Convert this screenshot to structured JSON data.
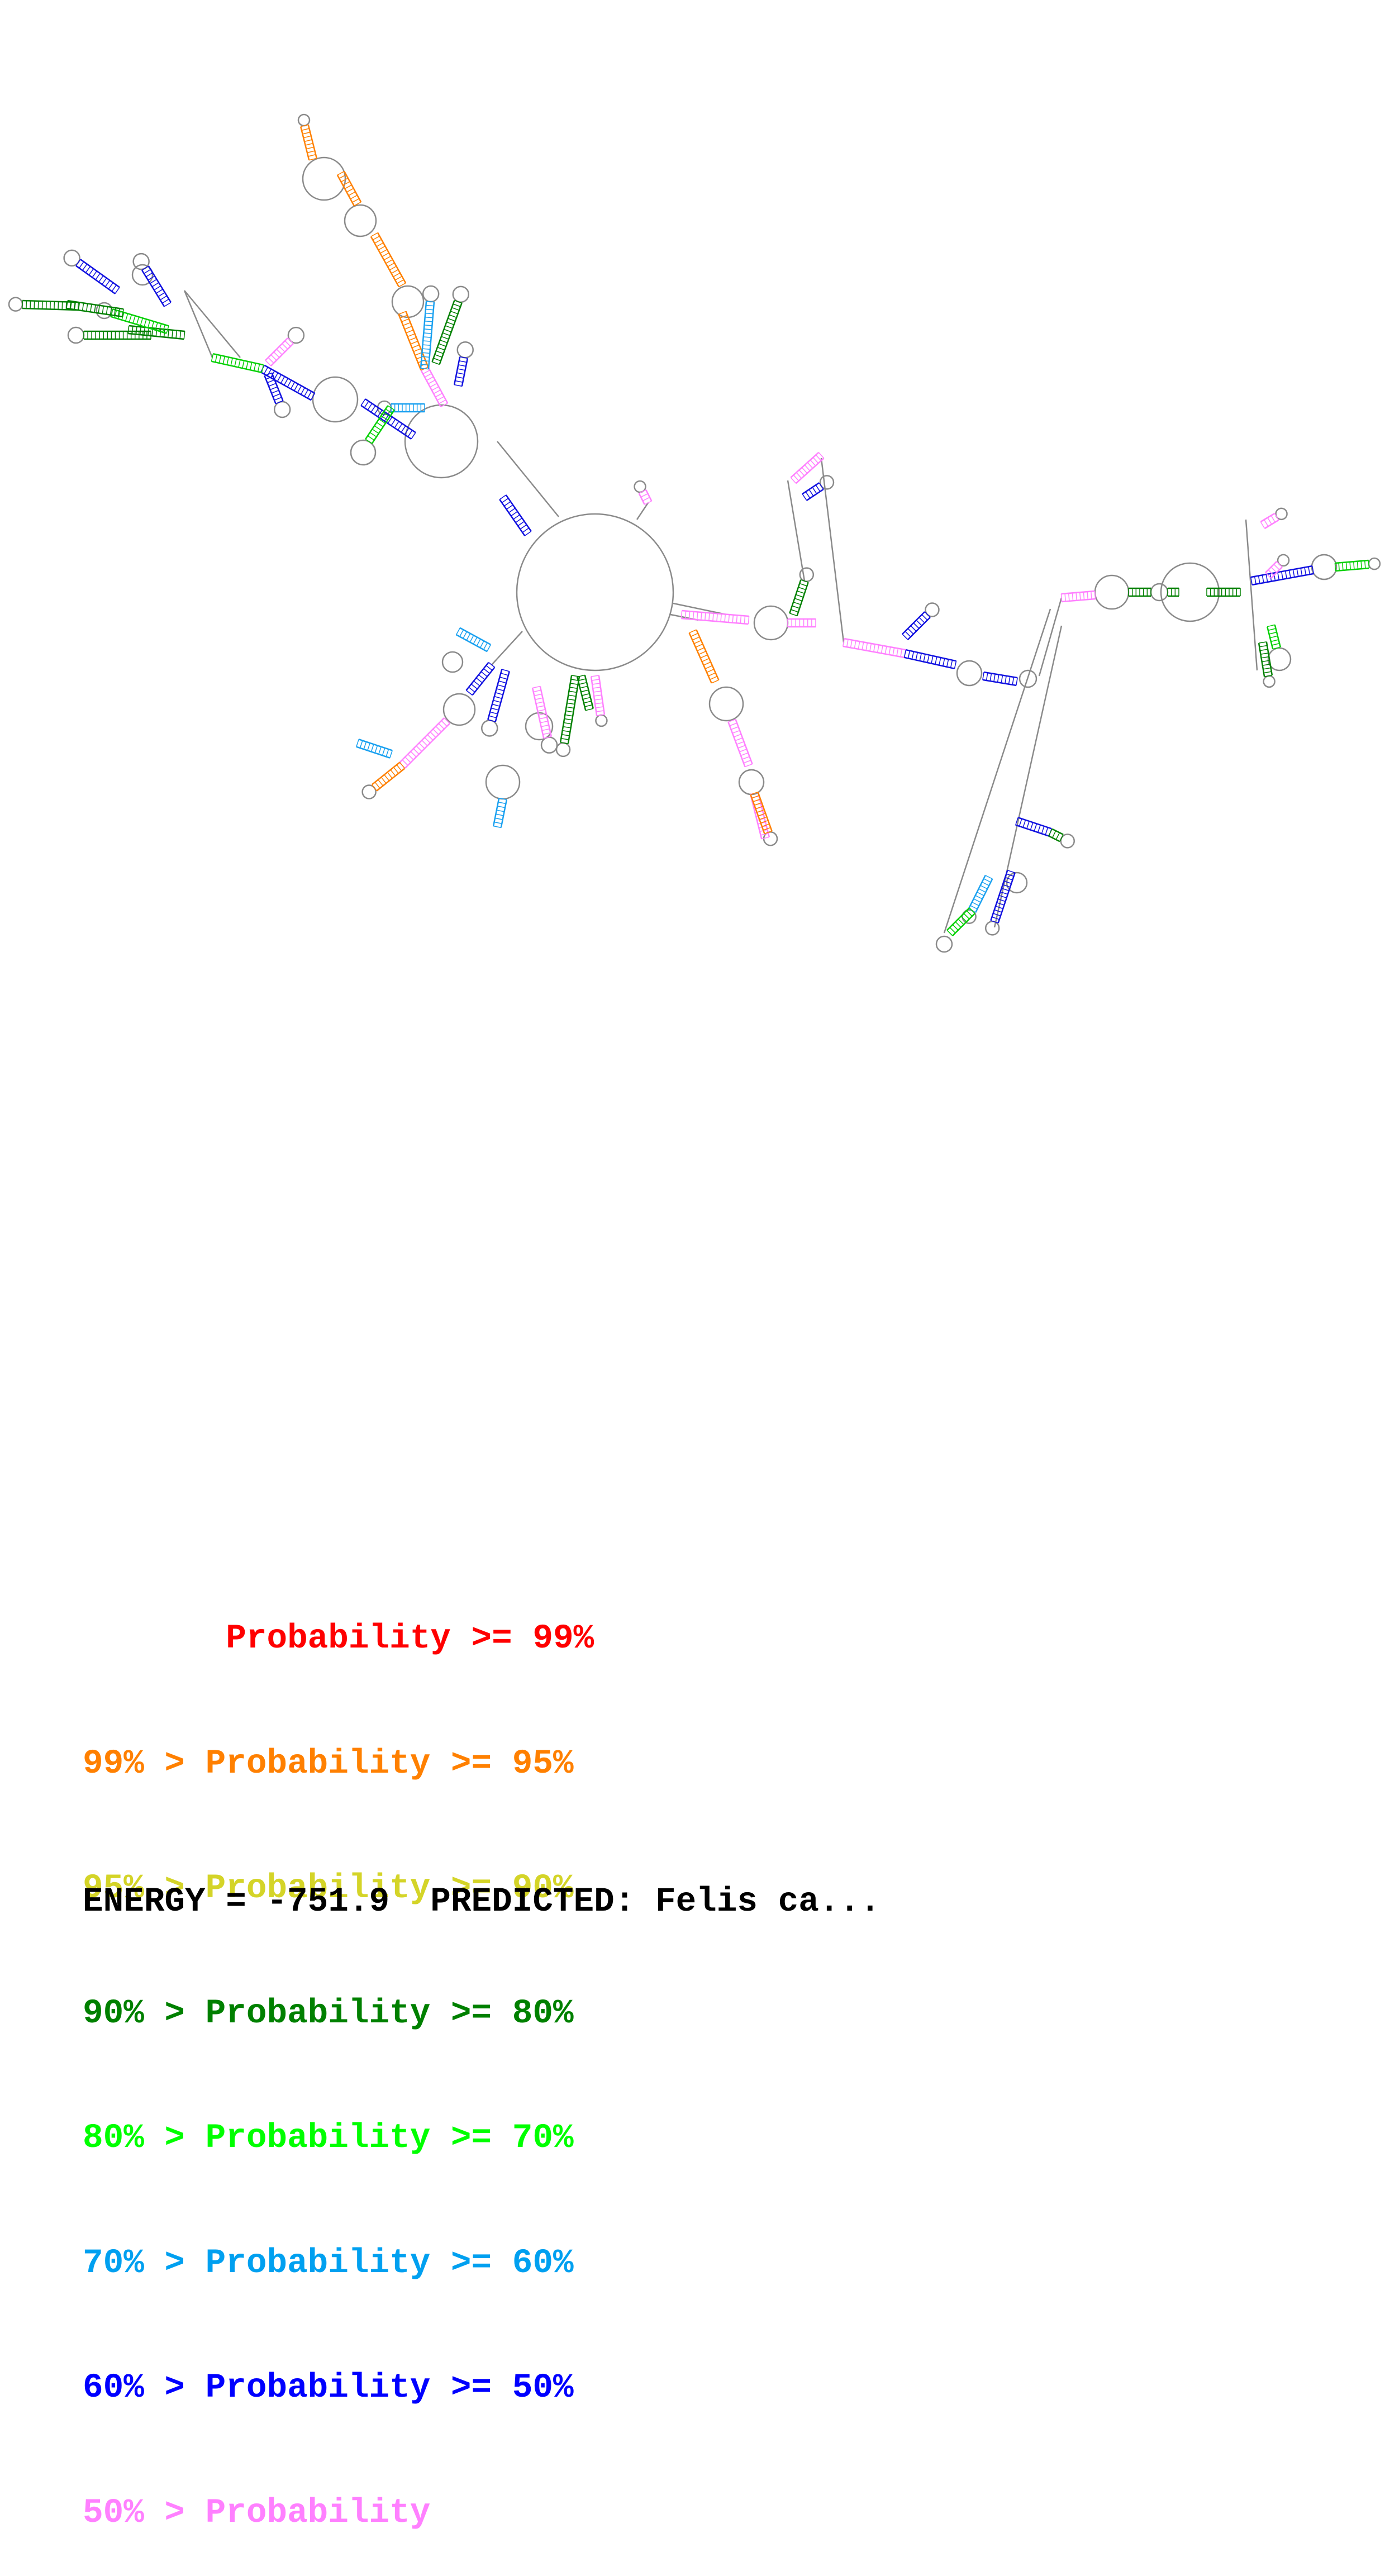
{
  "diagram": {
    "type": "rna-secondary-structure",
    "line_color": "#8a8a8a",
    "helix_colors": [
      "#e02020",
      "#ff8000",
      "#c8c83c",
      "#008000",
      "#00d000",
      "#18a0f0",
      "#1010e0",
      "#ff80ff",
      "#a0a0a0"
    ]
  },
  "legend": [
    {
      "prefix": "       ",
      "label": "Probability >= 99%",
      "color": "#ff0000"
    },
    {
      "prefix": "99% > ",
      "label": "Probability >= 95%",
      "color": "#ff8000"
    },
    {
      "prefix": "95% > ",
      "label": "Probability >= 90%",
      "color": "#d4d428"
    },
    {
      "prefix": "90% > ",
      "label": "Probability >= 80%",
      "color": "#008000"
    },
    {
      "prefix": "80% > ",
      "label": "Probability >= 70%",
      "color": "#00ff00"
    },
    {
      "prefix": "70% > ",
      "label": "Probability >= 60%",
      "color": "#00a0f0"
    },
    {
      "prefix": "60% > ",
      "label": "Probability >= 50%",
      "color": "#0000ff"
    },
    {
      "prefix": "50% > ",
      "label": "Probability",
      "color": "#ff80ff"
    }
  ],
  "energy_line": "ENERGY = -751.9  PREDICTED: Felis ca..."
}
